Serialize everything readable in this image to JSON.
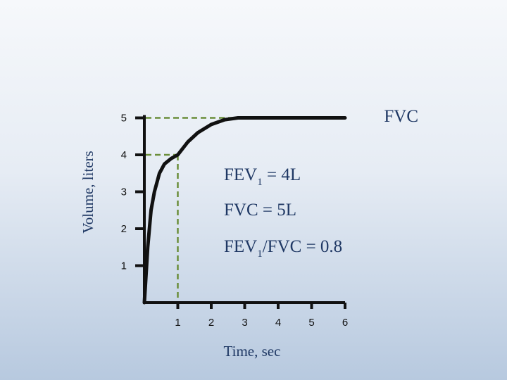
{
  "chart_data": {
    "type": "line",
    "xlabel": "Time, sec",
    "ylabel": "Volume, liters",
    "xlim": [
      0,
      6
    ],
    "ylim": [
      0,
      5
    ],
    "x_ticks": [
      "1",
      "2",
      "3",
      "4",
      "5",
      "6"
    ],
    "y_ticks": [
      "1",
      "2",
      "3",
      "4",
      "5"
    ],
    "series": [
      {
        "name": "FVC",
        "color": "#111111",
        "x": [
          0.0,
          0.1,
          0.2,
          0.3,
          0.45,
          0.6,
          0.8,
          1.0,
          1.3,
          1.6,
          2.0,
          2.4,
          2.8,
          6.0
        ],
        "y": [
          0.0,
          1.5,
          2.5,
          3.0,
          3.5,
          3.75,
          3.9,
          4.0,
          4.35,
          4.6,
          4.82,
          4.95,
          5.0,
          5.0
        ]
      }
    ],
    "reference_lines": [
      {
        "label": "FEV1",
        "x": 1,
        "y": 4,
        "color": "#6b8e3a"
      },
      {
        "label": "FVC",
        "x": 2.8,
        "y": 5,
        "color": "#6b8e3a"
      }
    ],
    "series_label": "FVC",
    "annotations": [
      {
        "main": "FEV",
        "sub": "1",
        "rest": " = 4L"
      },
      {
        "main": "FVC  = 5L",
        "sub": "",
        "rest": ""
      },
      {
        "main": "FEV",
        "sub": "1",
        "rest": "/FVC = 0.8"
      }
    ],
    "grid": false
  }
}
